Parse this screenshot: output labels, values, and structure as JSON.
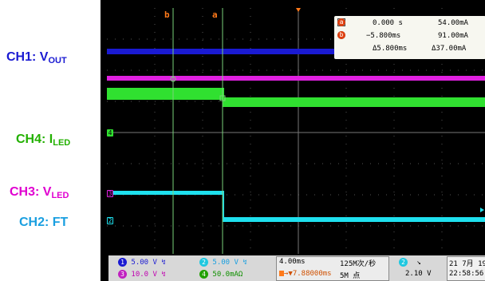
{
  "labels": {
    "ch1": {
      "main": "CH1: V",
      "sub": "OUT",
      "color": "#1a1ad2"
    },
    "ch4": {
      "main": "CH4: I",
      "sub": "LED",
      "color": "#22b000"
    },
    "ch3": {
      "main": "CH3: V",
      "sub": "LED",
      "color": "#e000d0"
    },
    "ch2": {
      "main": "CH2: FT",
      "sub": "",
      "color": "#1a9fe0"
    }
  },
  "cursors": {
    "a_tag": "a",
    "b_tag": "b"
  },
  "measurements": {
    "row_a": {
      "time": "0.000 s",
      "value": "54.00mA"
    },
    "row_b": {
      "time": "−5.800ms",
      "value": "91.00mA"
    },
    "row_delta": {
      "time": "Δ5.800ms",
      "value": "Δ37.00mA"
    }
  },
  "markers": {
    "ch4": "4",
    "ch3": "3",
    "ch2": "2"
  },
  "status": {
    "ch1_scale": "5.00 V",
    "ch2_scale": "5.00 V",
    "ch3_scale": "10.0 V",
    "ch4_scale": "50.0mAΩ",
    "timebase": "4.00ms",
    "trigger_pos": "→▼7.88000ms",
    "sample_rate": "125M次/秒",
    "record_length": "5M 点",
    "trig_channel": "2",
    "trig_slope": "↘",
    "trig_level": "2.10 V",
    "date": "21 7月 19",
    "time": "22:58:56"
  },
  "colors": {
    "ch1": "#1a1ad2",
    "ch2": "#1ee0ee",
    "ch3": "#e020e0",
    "ch4": "#30e030",
    "cursor": "#ff7a1a"
  }
}
